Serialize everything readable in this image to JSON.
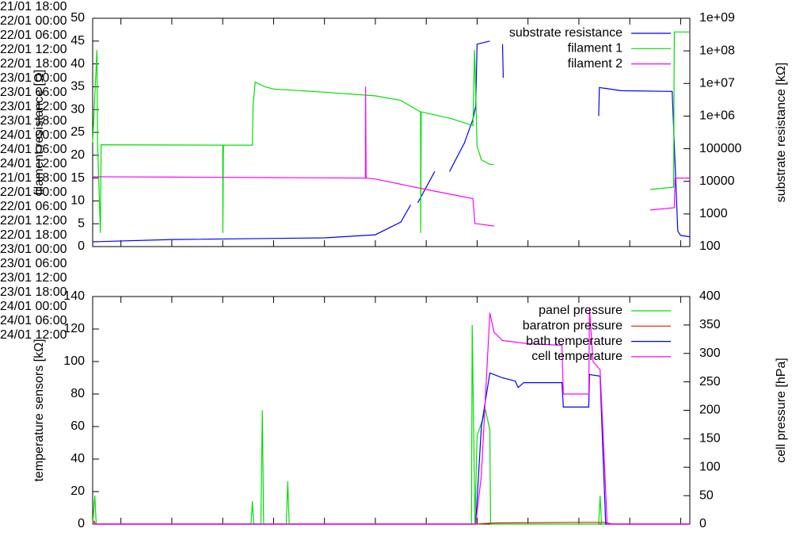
{
  "chart_data": [
    {
      "type": "line",
      "ylabel": "filament resistance [Ω]",
      "y2label": "substrate resistance [kΩ]",
      "xlim": [
        "21/01 14:40",
        "24/01 13:05"
      ],
      "xticks": [
        "21/01 18:00",
        "22/01 00:00",
        "22/01 06:00",
        "22/01 12:00",
        "22/01 18:00",
        "23/01 00:00",
        "23/01 06:00",
        "23/01 12:00",
        "23/01 18:00",
        "24/01 00:00",
        "24/01 06:00",
        "24/01 12:00"
      ],
      "ylim": [
        0,
        50
      ],
      "yticks": [
        0,
        5,
        10,
        15,
        20,
        25,
        30,
        35,
        40,
        45,
        50
      ],
      "y2lim": [
        100,
        1000000000
      ],
      "y2log": true,
      "y2ticks": [
        100,
        1000,
        10000,
        100000,
        {
          "value": 1000000,
          "label": "1e+06"
        },
        {
          "value": 10000000,
          "label": "1e+07"
        },
        {
          "value": 100000000,
          "label": "1e+08"
        },
        {
          "value": 1000000000,
          "label": "1e+09"
        }
      ],
      "legend": "upper right",
      "series": [
        {
          "name": "substrate resistance",
          "color": "#0000ff",
          "axis": "y2",
          "x": [
            "21/01 14:40",
            "22/01 00:00",
            "22/01 18:00",
            "23/01 00:00",
            "23/01 03:00",
            "23/01 04:10",
            "23/01 04:30",
            "23/01 05:00",
            "23/01 07:00",
            "23/01 07:40",
            "23/01 08:45",
            "23/01 10:30",
            "23/01 11:30",
            "23/01 11:50",
            "23/01 12:00",
            "23/01 13:30",
            "23/01 14:30",
            "23/01 15:00",
            "23/01 15:05",
            "24/01 00:00",
            "24/01 02:20",
            "24/01 02:25",
            "24/01 05:00",
            "24/01 11:00",
            "24/01 11:40",
            "24/01 12:00",
            "24/01 13:05"
          ],
          "values": [
            140,
            165,
            185,
            230,
            560,
            1900,
            null,
            2200,
            20000,
            null,
            20000,
            150000,
            800000,
            2000000,
            160000000,
            200000000,
            null,
            160000000,
            15000000,
            null,
            1000000,
            7500000,
            6000000,
            5700000,
            300,
            220,
            200
          ]
        },
        {
          "name": "filament 1",
          "color": "#00e000",
          "x": [
            "21/01 14:40",
            "21/01 15:10",
            "21/01 15:15",
            "21/01 15:35",
            "21/01 15:40",
            "22/01 06:00",
            "22/01 06:01",
            "22/01 06:05",
            "22/01 09:30",
            "22/01 09:35",
            "22/01 09:50",
            "22/01 11:00",
            "22/01 12:00",
            "22/01 18:00",
            "23/01 00:00",
            "23/01 03:00",
            "23/01 05:20",
            "23/01 05:21",
            "23/01 05:25",
            "23/01 09:00",
            "23/01 11:30",
            "23/01 11:42",
            "23/01 12:00",
            "23/01 12:30",
            "23/01 13:30",
            "23/01 14:00",
            "23/01 20:00",
            "24/01 08:25",
            "24/01 11:10",
            "24/01 11:15",
            "24/01 13:05"
          ],
          "values": [
            22.8,
            43,
            22.5,
            3,
            22.3,
            22.2,
            3,
            22.2,
            22.2,
            31,
            36,
            35,
            34.5,
            33.8,
            33,
            32,
            29.5,
            3,
            29.5,
            28,
            26.5,
            43,
            22,
            19,
            18,
            18,
            null,
            12.5,
            13,
            47,
            47
          ]
        },
        {
          "name": "filament 2",
          "color": "#ff00ff",
          "x": [
            "21/01 14:40",
            "22/01 00:00",
            "22/01 12:00",
            "22/01 22:50",
            "22/01 22:51",
            "22/01 22:55",
            "23/01 00:00",
            "23/01 06:00",
            "23/01 11:30",
            "23/01 11:45",
            "23/01 12:00",
            "23/01 14:00",
            "23/01 20:00",
            "24/01 08:25",
            "24/01 11:15",
            "24/01 11:20",
            "24/01 13:05"
          ],
          "values": [
            15.3,
            15.2,
            15.1,
            15,
            35,
            15,
            14.8,
            12.5,
            10.5,
            5,
            5,
            4.5,
            null,
            8,
            8.5,
            15,
            15
          ]
        }
      ]
    },
    {
      "type": "line",
      "ylabel": "temperature sensors [kΩ]",
      "y2label": "cell pressure [hPa]",
      "xlim": [
        "21/01 14:40",
        "24/01 13:05"
      ],
      "xticks": [
        "21/01 18:00",
        "22/01 00:00",
        "22/01 06:00",
        "22/01 12:00",
        "22/01 18:00",
        "23/01 00:00",
        "23/01 06:00",
        "23/01 12:00",
        "23/01 18:00",
        "24/01 00:00",
        "24/01 06:00",
        "24/01 12:00"
      ],
      "ylim": [
        0,
        140
      ],
      "yticks": [
        0,
        20,
        40,
        60,
        80,
        100,
        120,
        140
      ],
      "y2lim": [
        0,
        400
      ],
      "y2ticks": [
        0,
        50,
        100,
        150,
        200,
        250,
        300,
        350,
        400
      ],
      "legend": "upper right",
      "series": [
        {
          "name": "panel pressure",
          "color": "#00e000",
          "axis": "y2",
          "x": [
            "21/01 14:40",
            "21/01 14:55",
            "21/01 15:05",
            "22/01 09:20",
            "22/01 09:30",
            "22/01 09:40",
            "22/01 10:30",
            "22/01 10:40",
            "22/01 10:50",
            "22/01 13:30",
            "22/01 13:40",
            "22/01 13:50",
            "23/01 11:20",
            "23/01 11:25",
            "23/01 11:45",
            "23/01 12:00",
            "23/01 13:00",
            "23/01 13:30",
            "23/01 13:35",
            "24/01 02:20",
            "24/01 02:30",
            "24/01 02:40",
            "24/01 13:05"
          ],
          "values": [
            0,
            50,
            0,
            0,
            40,
            0,
            0,
            200,
            0,
            0,
            75,
            0,
            0,
            350,
            0,
            155,
            200,
            165,
            0,
            0,
            50,
            0,
            0
          ]
        },
        {
          "name": "baratron pressure",
          "color": "#e02000",
          "axis": "y2",
          "x": [
            "21/01 14:40",
            "21/01 14:50",
            "21/01 15:00",
            "23/01 11:50",
            "23/01 14:00",
            "24/01 00:00",
            "24/01 03:00",
            "24/01 04:00",
            "24/01 13:05"
          ],
          "values": [
            0,
            5,
            0,
            0,
            2,
            3,
            3,
            0,
            0
          ]
        },
        {
          "name": "bath temperature",
          "color": "#0000ff",
          "x": [
            "21/01 14:40",
            "23/01 11:50",
            "23/01 12:30",
            "23/01 13:30",
            "23/01 15:00",
            "23/01 16:30",
            "23/01 16:50",
            "23/01 17:30",
            "23/01 22:00",
            "23/01 22:10",
            "24/01 01:10",
            "24/01 01:15",
            "24/01 02:30",
            "24/01 02:50",
            "24/01 03:10",
            "24/01 13:05"
          ],
          "values": [
            0,
            0,
            60,
            93,
            90,
            88,
            84,
            87,
            87,
            72,
            72,
            92,
            91,
            45,
            0,
            0
          ]
        },
        {
          "name": "cell temperature",
          "color": "#ff00ff",
          "x": [
            "21/01 14:40",
            "23/01 11:50",
            "23/01 12:30",
            "23/01 13:30",
            "23/01 14:00",
            "23/01 15:00",
            "23/01 18:00",
            "23/01 22:00",
            "23/01 22:10",
            "24/01 01:10",
            "24/01 01:15",
            "24/01 01:40",
            "24/01 02:30",
            "24/01 03:00",
            "24/01 03:20",
            "24/01 13:05"
          ],
          "values": [
            0,
            0,
            30,
            130,
            118,
            113,
            111,
            110,
            80,
            80,
            133,
            100,
            95,
            40,
            0,
            0
          ]
        }
      ]
    }
  ]
}
